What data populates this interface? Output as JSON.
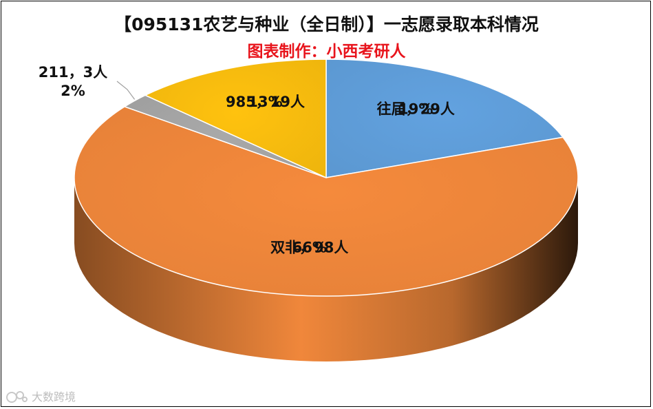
{
  "chart_data": {
    "type": "pie",
    "title": "【095131农艺与种业（全日制）】一志愿录取本科情况",
    "subtitle": "图表制作：小西考研人",
    "slices": [
      {
        "name": "往届",
        "value": 29,
        "count_label": "29人",
        "percent_label": "19%",
        "color": "#62A2E0"
      },
      {
        "name": "双非",
        "value": 98,
        "count_label": "98人",
        "percent_label": "66%",
        "color": "#F58A3C"
      },
      {
        "name": "211",
        "value": 3,
        "count_label": "3人",
        "percent_label": "2%",
        "color": "#A9A9A9"
      },
      {
        "name": "985",
        "value": 19,
        "count_label": "19人",
        "percent_label": "13%",
        "color": "#FFC20E"
      }
    ],
    "separator": "，",
    "legend": "none"
  },
  "colors": {
    "title": "#111111",
    "subtitle": "#E8141C"
  },
  "watermark": {
    "text": "大数跨境",
    "icon": "watermark-logo-icon"
  }
}
